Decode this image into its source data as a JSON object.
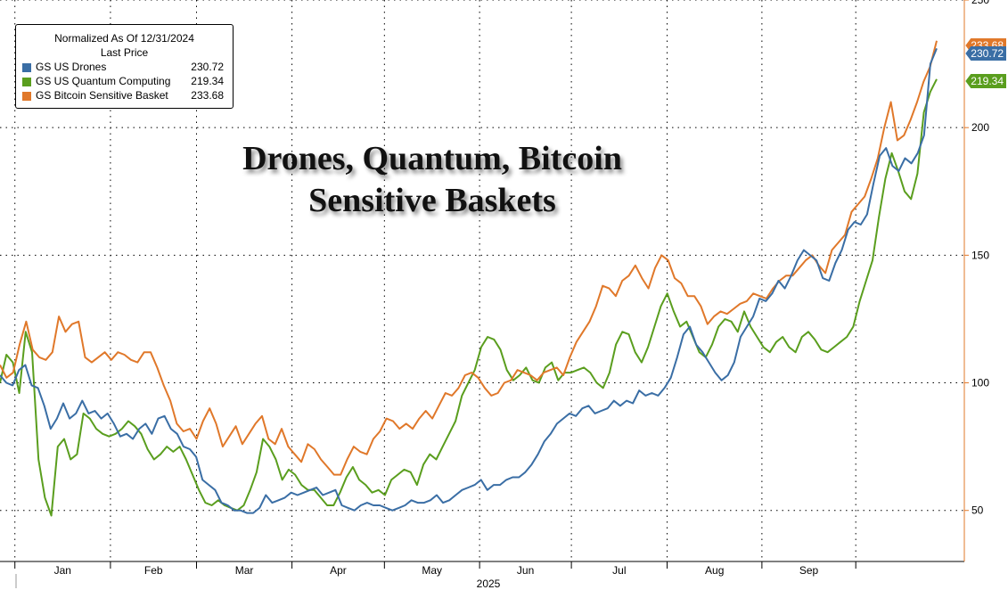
{
  "chart_data": {
    "type": "line",
    "title": "Drones, Quantum, Bitcoin",
    "subtitle": "Sensitive Baskets",
    "xlabel": "2025",
    "ylabel": "",
    "legend": {
      "heading": "Normalized As Of 12/31/2024",
      "subheading": "Last Price",
      "placement": "top-left"
    },
    "x_range": [
      "2024-12-31",
      "2025-09-30"
    ],
    "ylim": [
      30,
      250
    ],
    "y_ticks": [
      50,
      100,
      150,
      200,
      250
    ],
    "month_labels": [
      "Jan",
      "Feb",
      "Mar",
      "Apr",
      "May",
      "Jun",
      "Jul",
      "Aug",
      "Sep"
    ],
    "grid": true,
    "series": [
      {
        "name": "GS US Drones",
        "last": "230.72",
        "color": "#3a6ea5",
        "values": [
          103,
          100,
          99,
          105,
          107,
          99,
          98,
          91,
          82,
          86,
          92,
          86,
          88,
          93,
          88,
          89,
          86,
          88,
          84,
          79,
          80,
          78,
          82,
          84,
          80,
          86,
          87,
          82,
          80,
          75,
          74,
          71,
          62,
          60,
          58,
          53,
          52,
          50,
          50,
          49,
          49,
          51,
          56,
          53,
          54,
          55,
          57,
          56,
          57,
          58,
          59,
          56,
          57,
          58,
          52,
          51,
          50,
          52,
          53,
          52,
          52,
          51,
          50,
          51,
          52,
          54,
          53,
          53,
          54,
          56,
          53,
          54,
          56,
          58,
          59,
          60,
          62,
          58,
          60,
          60,
          62,
          63,
          63,
          65,
          68,
          72,
          77,
          80,
          84,
          86,
          88,
          87,
          90,
          91,
          88,
          89,
          90,
          93,
          91,
          93,
          92,
          97,
          95,
          96,
          95,
          98,
          102,
          110,
          119,
          122,
          115,
          112,
          108,
          104,
          101,
          103,
          108,
          118,
          122,
          126,
          133,
          132,
          135,
          140,
          137,
          142,
          148,
          152,
          150,
          148,
          141,
          140,
          147,
          152,
          160,
          163,
          162,
          166,
          178,
          189,
          192,
          185,
          183,
          188,
          186,
          190,
          197,
          225,
          231
        ]
      },
      {
        "name": "GS US Quantum Computing",
        "last": "219.34",
        "color": "#5a9e1e",
        "values": [
          100,
          111,
          108,
          96,
          120,
          112,
          70,
          55,
          48,
          75,
          78,
          70,
          72,
          88,
          86,
          82,
          80,
          79,
          80,
          82,
          85,
          83,
          80,
          74,
          70,
          72,
          75,
          73,
          75,
          70,
          64,
          58,
          53,
          52,
          54,
          52,
          51,
          50,
          52,
          58,
          65,
          78,
          75,
          70,
          62,
          66,
          64,
          60,
          58,
          58,
          55,
          52,
          52,
          57,
          63,
          67,
          62,
          60,
          57,
          58,
          56,
          62,
          64,
          66,
          65,
          60,
          68,
          72,
          70,
          75,
          80,
          85,
          95,
          100,
          105,
          114,
          118,
          117,
          113,
          105,
          101,
          103,
          106,
          101,
          100,
          106,
          108,
          101,
          104,
          104,
          105,
          106,
          104,
          100,
          98,
          104,
          115,
          120,
          119,
          112,
          108,
          114,
          122,
          130,
          135,
          128,
          122,
          124,
          118,
          112,
          110,
          115,
          122,
          125,
          124,
          120,
          128,
          122,
          118,
          114,
          112,
          116,
          118,
          114,
          112,
          118,
          120,
          117,
          113,
          112,
          114,
          116,
          118,
          122,
          132,
          140,
          148,
          165,
          180,
          190,
          183,
          175,
          172,
          182,
          206,
          214,
          219
        ]
      },
      {
        "name": "GS Bitcoin Sensitive Basket",
        "last": "233.68",
        "color": "#e0782a",
        "values": [
          107,
          102,
          104,
          115,
          124,
          113,
          110,
          109,
          112,
          126,
          120,
          123,
          124,
          110,
          108,
          110,
          112,
          109,
          112,
          111,
          109,
          108,
          112,
          112,
          106,
          99,
          93,
          84,
          81,
          82,
          78,
          85,
          90,
          84,
          75,
          79,
          83,
          76,
          80,
          84,
          87,
          78,
          76,
          82,
          75,
          72,
          69,
          76,
          74,
          70,
          67,
          64,
          64,
          70,
          75,
          73,
          72,
          78,
          81,
          86,
          85,
          82,
          84,
          82,
          86,
          89,
          86,
          91,
          96,
          95,
          98,
          103,
          104,
          102,
          98,
          95,
          96,
          100,
          101,
          105,
          104,
          103,
          101,
          104,
          105,
          106,
          103,
          110,
          116,
          120,
          124,
          130,
          138,
          137,
          134,
          140,
          142,
          146,
          141,
          137,
          145,
          150,
          148,
          141,
          139,
          134,
          134,
          130,
          123,
          126,
          128,
          127,
          129,
          131,
          132,
          135,
          134,
          133,
          137,
          140,
          142,
          142,
          145,
          148,
          150,
          146,
          143,
          152,
          155,
          158,
          167,
          170,
          173,
          180,
          188,
          200,
          210,
          195,
          197,
          203,
          210,
          218,
          224,
          234
        ]
      }
    ]
  }
}
